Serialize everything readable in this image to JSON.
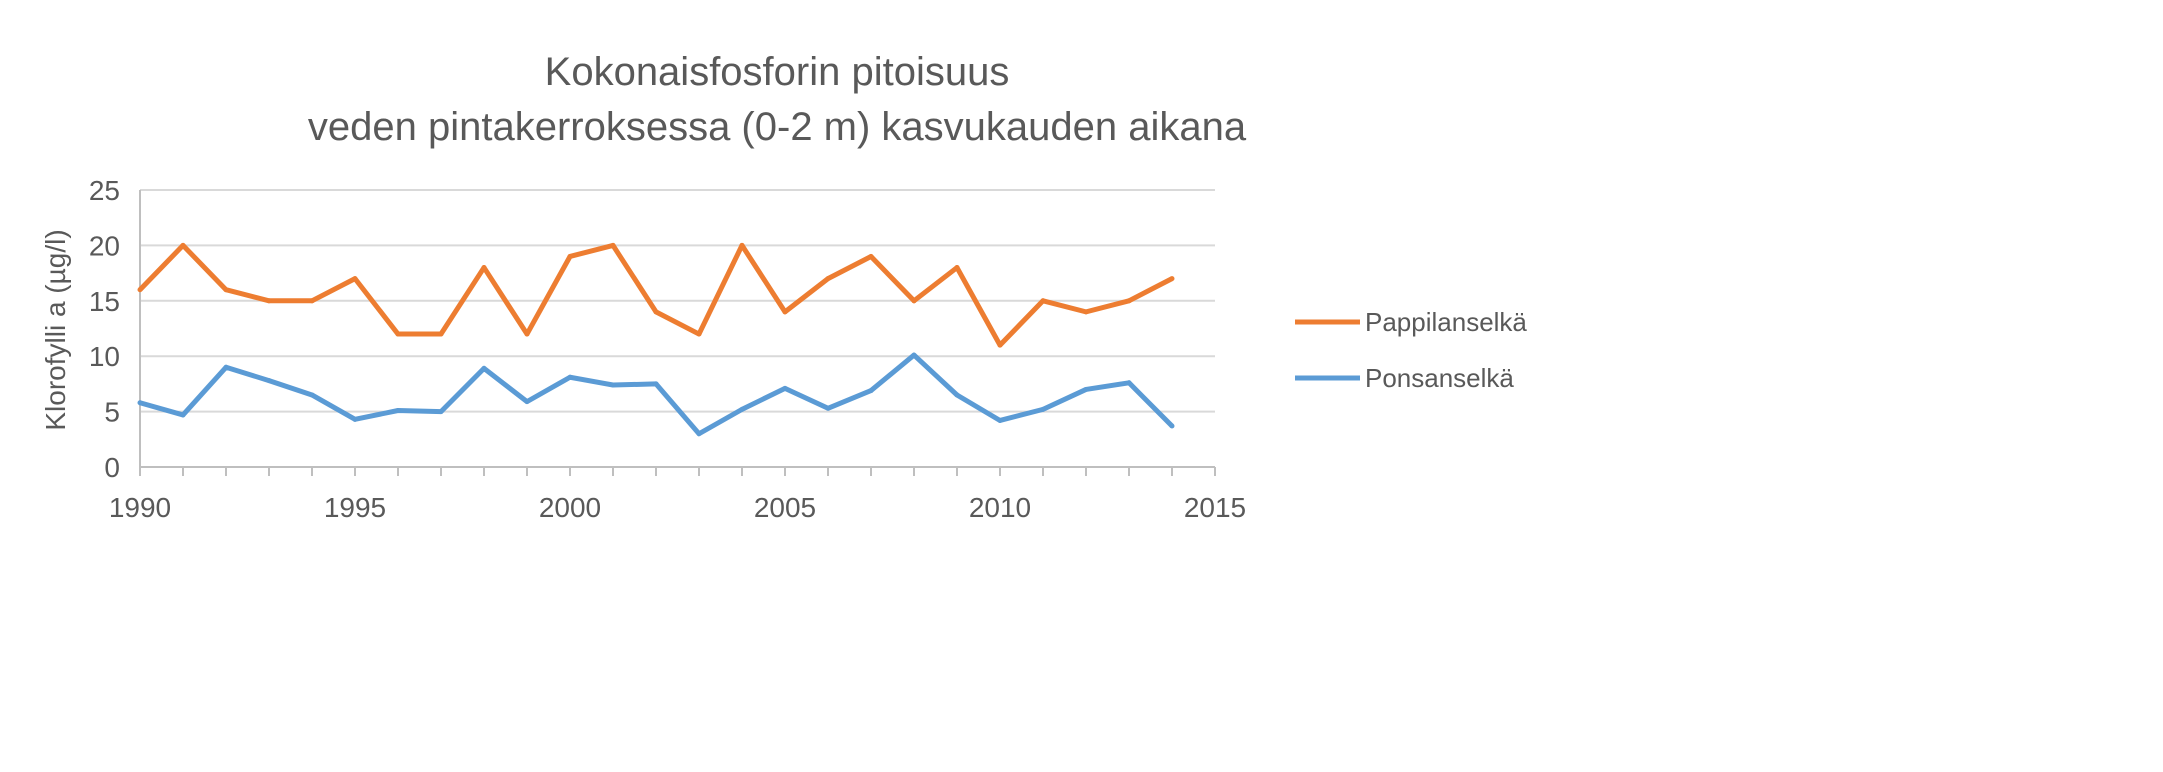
{
  "chart_data": {
    "type": "line",
    "title": [
      "Kokonaisfosforin pitoisuus",
      "veden pintakerroksessa (0-2 m) kasvukauden aikana"
    ],
    "xlabel": "",
    "ylabel": "Klorofylli a (µg/l)",
    "xlim": [
      1990,
      2015
    ],
    "ylim": [
      0,
      25
    ],
    "xticks": [
      1990,
      1995,
      2000,
      2005,
      2010,
      2015
    ],
    "yticks": [
      0,
      5,
      10,
      15,
      20,
      25
    ],
    "grid": true,
    "legend_position": "right",
    "x": [
      1990,
      1991,
      1992,
      1993,
      1994,
      1995,
      1996,
      1997,
      1998,
      1999,
      2000,
      2001,
      2002,
      2003,
      2004,
      2005,
      2006,
      2007,
      2008,
      2009,
      2010,
      2011,
      2012,
      2013,
      2014
    ],
    "series": [
      {
        "name": "Pappilanselkä",
        "color": "#ED7D31",
        "values": [
          16,
          20,
          16,
          15,
          15,
          17,
          12,
          12,
          18,
          12,
          19,
          20,
          14,
          12,
          20,
          14,
          17,
          19,
          15,
          18,
          11,
          15,
          14,
          15,
          17
        ]
      },
      {
        "name": "Ponsanselkä",
        "color": "#5B9BD5",
        "values": [
          5.8,
          4.7,
          9.0,
          7.8,
          6.5,
          4.3,
          5.1,
          5.0,
          8.9,
          5.9,
          8.1,
          7.4,
          7.5,
          3.0,
          5.2,
          7.1,
          5.3,
          6.9,
          10.1,
          6.5,
          4.2,
          5.2,
          7.0,
          7.6,
          3.7
        ]
      }
    ]
  }
}
